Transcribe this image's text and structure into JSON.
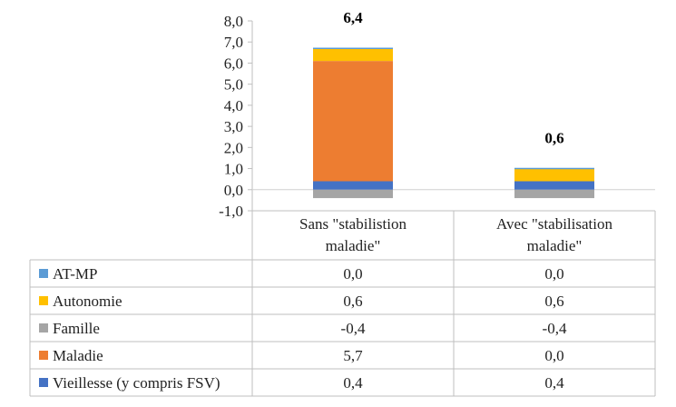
{
  "chart_data": {
    "type": "bar",
    "stacked": true,
    "categories": [
      "Sans \"stabilistion maladie\"",
      "Avec \"stabilisation maladie\""
    ],
    "category_lines": [
      [
        "Sans \"stabilistion",
        "maladie\""
      ],
      [
        "Avec \"stabilisation",
        "maladie\""
      ]
    ],
    "series": [
      {
        "name": "AT-MP",
        "color": "#5B9BD5",
        "values": [
          0.0,
          0.0
        ],
        "labels": [
          "0,0",
          "0,0"
        ]
      },
      {
        "name": "Autonomie",
        "color": "#FFC000",
        "values": [
          0.6,
          0.6
        ],
        "labels": [
          "0,6",
          "0,6"
        ]
      },
      {
        "name": "Famille",
        "color": "#A5A5A5",
        "values": [
          -0.4,
          -0.4
        ],
        "labels": [
          "-0,4",
          "-0,4"
        ]
      },
      {
        "name": "Maladie",
        "color": "#ED7D31",
        "values": [
          5.7,
          0.0
        ],
        "labels": [
          "5,7",
          "0,0"
        ]
      },
      {
        "name": "Vieillesse (y compris FSV)",
        "color": "#4472C4",
        "values": [
          0.4,
          0.4
        ],
        "labels": [
          "0,4",
          "0,4"
        ]
      }
    ],
    "stack_order": [
      "Vieillesse (y compris FSV)",
      "Maladie",
      "Autonomie",
      "AT-MP",
      "Famille"
    ],
    "totals": [
      6.4,
      0.6
    ],
    "total_labels": [
      "6,4",
      "0,6"
    ],
    "ylim": [
      -1.0,
      8.0
    ],
    "yticks": [
      -1.0,
      0.0,
      1.0,
      2.0,
      3.0,
      4.0,
      5.0,
      6.0,
      7.0,
      8.0
    ],
    "ytick_labels": [
      "-1,0",
      "0,0",
      "1,0",
      "2,0",
      "3,0",
      "4,0",
      "5,0",
      "6,0",
      "7,0",
      "8,0"
    ],
    "grid": false,
    "legend": "data-table"
  }
}
